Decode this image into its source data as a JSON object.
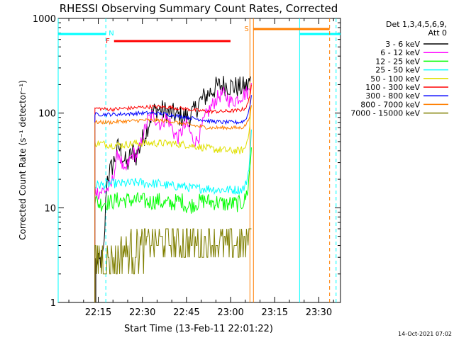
{
  "chart_data": {
    "type": "line",
    "title": "RHESSI Observing Summary Count Rates, Corrected",
    "xlabel": "Start Time (13-Feb-11 22:01:22)",
    "ylabel": "Corrected Count Rate (s⁻¹ detector⁻¹)",
    "yscale": "log",
    "ylim": [
      1,
      1000
    ],
    "xlim_minutes": [
      0,
      96
    ],
    "x_ticks": [
      "22:15",
      "22:30",
      "22:45",
      "23:00",
      "23:15",
      "23:30"
    ],
    "y_ticks": [
      "1",
      "10",
      "100",
      "1000"
    ],
    "legend_header": [
      "Det 1,3,4,5,6,9,",
      "Att 0"
    ],
    "legend_placement": "top-right outside",
    "timestamp": "14-Oct-2021 07:02",
    "flags": [
      {
        "label": "N",
        "color": "#00ffff"
      },
      {
        "label": "F",
        "color": "#ff0000"
      },
      {
        "label": "S",
        "color": "#ff7f00"
      }
    ],
    "series": [
      {
        "name": "3 - 6 keV",
        "color": "#000000",
        "x": [
          12.8,
          13.5,
          14.5,
          15.5,
          16.5,
          17.5,
          18.5,
          19.5,
          20.5,
          21.5,
          22.5,
          23.5,
          24.5,
          25.5,
          26.5,
          27.5,
          29,
          30.5,
          32,
          34,
          36,
          38,
          40,
          42,
          44,
          46,
          48,
          50,
          52,
          54,
          56,
          58,
          60,
          62,
          64,
          65.5
        ],
        "y": [
          2.7,
          2.5,
          2.8,
          3.2,
          20,
          24,
          28,
          35,
          45,
          38,
          32,
          28,
          35,
          40,
          35,
          42,
          55,
          75,
          100,
          110,
          105,
          100,
          95,
          92,
          90,
          100,
          130,
          150,
          170,
          190,
          200,
          195,
          190,
          185,
          190,
          220
        ]
      },
      {
        "name": "6 - 12 keV",
        "color": "#ff00ff",
        "x": [
          12.5,
          13.5,
          15,
          16.5,
          18,
          19.5,
          20.5,
          21.5,
          22.5,
          23.5,
          24.5,
          25.5,
          26.5,
          27.5,
          29,
          30.5,
          32,
          33.5,
          35,
          36.5,
          38,
          39.5,
          41,
          42.5,
          44,
          45.5,
          47,
          48.5,
          50,
          51.5,
          53,
          54.5,
          56,
          57.5,
          59,
          60.5,
          62,
          63.5,
          65,
          65.8
        ],
        "y": [
          16,
          14.5,
          15,
          15.5,
          17,
          28,
          40,
          30,
          22,
          28,
          32,
          38,
          35,
          40,
          60,
          85,
          95,
          85,
          75,
          90,
          80,
          60,
          55,
          70,
          75,
          55,
          50,
          65,
          90,
          110,
          130,
          150,
          160,
          145,
          130,
          140,
          150,
          160,
          170,
          250
        ]
      },
      {
        "name": "12 - 25 keV",
        "color": "#00ff00",
        "x": [
          12.5,
          14,
          16,
          18,
          20,
          22,
          24,
          26,
          28,
          30,
          32,
          34,
          36,
          38,
          40,
          42,
          44,
          46,
          48,
          50,
          52,
          54,
          56,
          58,
          60,
          62,
          63.5,
          64.5,
          65.3,
          65.8
        ],
        "y": [
          12,
          11,
          11.5,
          11.5,
          12,
          12,
          12,
          12,
          12,
          11.5,
          11.5,
          12,
          11,
          11,
          11.5,
          12,
          10,
          11,
          11.5,
          12,
          11.5,
          11.5,
          11,
          11,
          11,
          11,
          12,
          16,
          28,
          50
        ]
      },
      {
        "name": "25 - 50 keV",
        "color": "#00ffff",
        "x": [
          12.5,
          14,
          16,
          18,
          20,
          22,
          24,
          26,
          28,
          30,
          32,
          34,
          36,
          38,
          40,
          42,
          44,
          46,
          48,
          50,
          52,
          54,
          56,
          58,
          60,
          62,
          63.5,
          64.5,
          65.3,
          65.8
        ],
        "y": [
          17,
          17.5,
          17.5,
          18,
          18,
          18,
          18,
          18.5,
          18.5,
          18,
          18,
          18,
          17.5,
          17,
          17,
          17,
          16.5,
          16,
          16,
          16,
          16,
          15.5,
          15.5,
          15.5,
          15.5,
          15.5,
          16.5,
          22,
          38,
          70
        ]
      },
      {
        "name": "50 - 100 keV",
        "color": "#e0e000",
        "x": [
          12.5,
          14,
          16,
          18,
          20,
          22,
          24,
          26,
          28,
          30,
          32,
          34,
          36,
          38,
          40,
          42,
          44,
          46,
          48,
          50,
          52,
          54,
          56,
          58,
          60,
          62,
          63.5,
          64.5,
          65.3,
          65.8
        ],
        "y": [
          48,
          48,
          47,
          46,
          46,
          46,
          47,
          48,
          48,
          48,
          48,
          48,
          48,
          48,
          47,
          47,
          46,
          45,
          44,
          43,
          42,
          41,
          41,
          40,
          40,
          40,
          42,
          55,
          85,
          140
        ]
      },
      {
        "name": "100 - 300 keV",
        "color": "#ff0000",
        "x": [
          12.5,
          14,
          16,
          18,
          20,
          22,
          24,
          26,
          28,
          30,
          32,
          34,
          36,
          38,
          40,
          42,
          44,
          46,
          48,
          50,
          52,
          54,
          56,
          58,
          60,
          62,
          63.5,
          64.5,
          65.3,
          65.8
        ],
        "y": [
          112,
          112,
          110,
          110,
          110,
          112,
          112,
          114,
          115,
          116,
          117,
          117,
          116,
          115,
          113,
          112,
          110,
          108,
          106,
          105,
          104,
          104,
          104,
          105,
          106,
          108,
          112,
          125,
          160,
          210
        ]
      },
      {
        "name": "300 - 800 keV",
        "color": "#0000ff",
        "x": [
          12.5,
          14,
          16,
          18,
          20,
          22,
          24,
          26,
          28,
          30,
          32,
          34,
          36,
          38,
          40,
          42,
          44,
          46,
          48,
          50,
          52,
          54,
          56,
          58,
          60,
          62,
          63.5,
          64.5,
          65.3,
          65.8
        ],
        "y": [
          97,
          97,
          97,
          97,
          97,
          98,
          98,
          99,
          100,
          100,
          100,
          99,
          98,
          96,
          94,
          92,
          90,
          88,
          86,
          84,
          82,
          81,
          80,
          80,
          80,
          80,
          84,
          96,
          125,
          165
        ]
      },
      {
        "name": "800 - 7000 keV",
        "color": "#ff7f00",
        "x": [
          12.5,
          14,
          16,
          18,
          20,
          22,
          24,
          26,
          28,
          30,
          32,
          34,
          36,
          38,
          40,
          42,
          44,
          46,
          48,
          50,
          52,
          54,
          56,
          58,
          60,
          62,
          63.5,
          64.5,
          65.3,
          65.8
        ],
        "y": [
          80,
          80,
          80,
          80,
          81,
          82,
          82,
          83,
          84,
          84,
          84,
          84,
          83,
          82,
          80,
          78,
          76,
          74,
          72,
          71,
          70,
          70,
          70,
          70,
          70,
          70,
          73,
          82,
          100,
          130
        ]
      },
      {
        "name": "7000 - 15000 keV",
        "color": "#7f7f00",
        "x": [
          12.5,
          14,
          15.5,
          17,
          18.5,
          20,
          21.5,
          23,
          24.5,
          26,
          27.5,
          29,
          30.5,
          32,
          33.5,
          35,
          36.5,
          38,
          39.5,
          41,
          42.5,
          44,
          45.5,
          47,
          48.5,
          50,
          51.5,
          53,
          54.5,
          56,
          57.5,
          59,
          60.5,
          62,
          63.5,
          64.5,
          65.3,
          65.8
        ],
        "y": [
          2.5,
          3,
          2.8,
          2.7,
          3,
          2.8,
          3.2,
          3.4,
          3.5,
          3.6,
          3.8,
          4,
          4.2,
          4.4,
          4.5,
          4.5,
          4.6,
          4.5,
          4.5,
          4.3,
          4.4,
          4.5,
          4.4,
          4.2,
          4.1,
          4.2,
          4.3,
          4.2,
          4,
          3.9,
          4,
          4,
          4.1,
          4,
          4.1,
          5,
          8,
          12
        ]
      }
    ]
  }
}
